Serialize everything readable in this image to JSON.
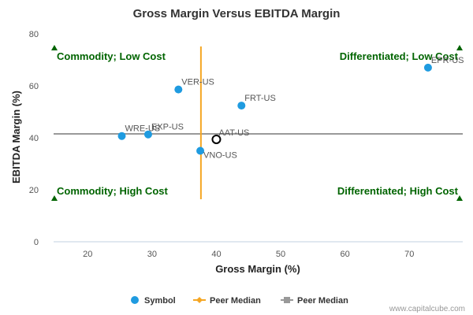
{
  "chart_data": {
    "type": "scatter",
    "title": "Gross Margin Versus EBITDA Margin",
    "xlabel": "Gross Margin (%)",
    "ylabel": "EBITDA Margin (%)",
    "xlim": [
      14.7,
      78.3
    ],
    "ylim": [
      0,
      80
    ],
    "xticks": [
      20,
      30,
      40,
      50,
      60,
      70
    ],
    "yticks": [
      0,
      20,
      40,
      60,
      80
    ],
    "grid": false,
    "legend_position": "bottom",
    "points": [
      {
        "label": "VER-US",
        "x": 34.1,
        "y": 58.6
      },
      {
        "label": "FRT-US",
        "x": 43.9,
        "y": 52.4
      },
      {
        "label": "EPR-US",
        "x": 72.9,
        "y": 67.0
      },
      {
        "label": "WRE-US",
        "x": 25.3,
        "y": 40.7
      },
      {
        "label": "EXP-US",
        "x": 29.4,
        "y": 41.3
      },
      {
        "label": "VNO-US",
        "x": 37.5,
        "y": 35.0
      }
    ],
    "subject": {
      "label": "AAT-US",
      "x": 40.0,
      "y": 39.4
    },
    "peer_median_x": 37.6,
    "peer_median_y": 41.5,
    "quadrants": {
      "top_left": "Commodity; Low Cost",
      "top_right": "Differentiated; Low Cost",
      "bottom_left": "Commodity; High Cost",
      "bottom_right": "Differentiated; High Cost"
    },
    "legend": [
      {
        "name": "Symbol",
        "color": "#1f9be0"
      },
      {
        "name": "Peer Median",
        "color": "#f5a623"
      },
      {
        "name": "Peer Median",
        "color": "#999999"
      }
    ],
    "colors": {
      "point": "#1f9be0",
      "vertical_median": "#f5a623",
      "horizontal_median": "#999999",
      "quadrant": "#006400"
    }
  },
  "credit": "www.capitalcube.com"
}
